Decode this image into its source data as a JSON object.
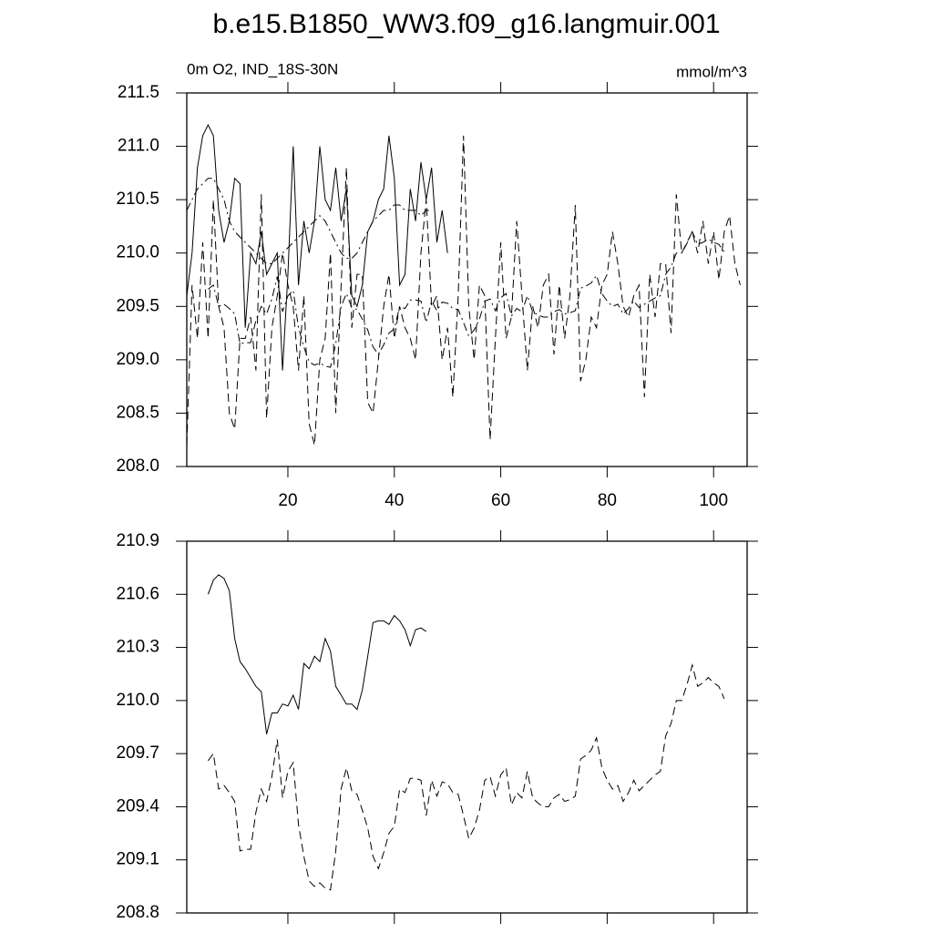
{
  "chart_data": [
    {
      "type": "line",
      "title": "b.e15.B1850_WW3.f09_g16.langmuir.001",
      "subtitle": "0m O2, IND_18S-30N",
      "units": "mmol/m^3",
      "x": [
        1,
        2,
        3,
        4,
        5,
        6,
        7,
        8,
        9,
        10,
        11,
        12,
        13,
        14,
        15,
        16,
        17,
        18,
        19,
        20,
        21,
        22,
        23,
        24,
        25,
        26,
        27,
        28,
        29,
        30,
        31,
        32,
        33,
        34,
        35,
        36,
        37,
        38,
        39,
        40,
        41,
        42,
        43,
        44,
        45,
        46,
        47,
        48,
        49,
        50,
        51,
        52,
        53,
        54,
        55,
        56,
        57,
        58,
        59,
        60,
        61,
        62,
        63,
        64,
        65,
        66,
        67,
        68,
        69,
        70,
        71,
        72,
        73,
        74,
        75,
        76,
        77,
        78,
        79,
        80,
        81,
        82,
        83,
        84,
        85,
        86,
        87,
        88,
        89,
        90,
        91,
        92,
        93,
        94,
        95,
        96,
        97,
        98,
        99,
        100,
        101,
        102,
        103,
        104,
        105
      ],
      "xlim": [
        1,
        106.3
      ],
      "xticks": [
        20,
        40,
        60,
        80,
        100
      ],
      "ylim": [
        208,
        211.5
      ],
      "yticks": [
        {
          "value": 208,
          "label": "208.0"
        },
        208.5,
        {
          "value": 209,
          "label": "209.0"
        },
        209.5,
        {
          "value": 210,
          "label": "210.0"
        },
        210.5,
        {
          "value": 211,
          "label": "211.0"
        },
        211.5
      ],
      "series": [
        {
          "color": "#000000",
          "dash": "solid",
          "values": [
            209.6,
            210.0,
            210.8,
            211.1,
            211.2,
            211.1,
            210.4,
            210.1,
            210.3,
            210.7,
            210.65,
            209.3,
            210.0,
            209.9,
            210.2,
            209.8,
            209.9,
            210.0,
            208.9,
            209.8,
            211.0,
            209.7,
            210.3,
            210.0,
            210.3,
            211.0,
            210.5,
            210.4,
            210.8,
            210.3,
            210.6,
            209.6,
            209.5,
            209.7,
            210.2,
            210.3,
            210.5,
            210.6,
            211.1,
            210.7,
            209.7,
            209.8,
            210.6,
            210.3,
            210.85,
            210.5,
            210.8,
            210.1,
            210.4,
            210.0,
            null,
            null,
            null,
            null,
            null,
            null,
            null,
            null,
            null,
            null,
            null,
            null,
            null,
            null,
            null,
            null,
            null,
            null,
            null,
            null,
            null,
            null,
            null,
            null,
            null,
            null,
            null,
            null,
            null,
            null,
            null,
            null,
            null,
            null,
            null,
            null,
            null,
            null,
            null,
            null,
            null,
            null,
            null,
            null,
            null,
            null,
            null,
            null,
            null,
            null,
            null,
            null,
            null,
            null,
            null
          ]
        },
        {
          "color": "#000000",
          "dash": "dashed",
          "values": [
            208.2,
            209.7,
            209.2,
            210.1,
            209.2,
            210.5,
            209.5,
            209.3,
            208.5,
            208.35,
            209.2,
            209.2,
            209.4,
            208.9,
            210.55,
            208.45,
            209.3,
            209.6,
            210.0,
            209.7,
            209.5,
            208.9,
            209.6,
            208.4,
            208.2,
            209.0,
            209.2,
            210.0,
            208.5,
            209.7,
            210.8,
            209.3,
            209.8,
            209.8,
            208.6,
            208.5,
            209.0,
            209.5,
            209.8,
            209.2,
            209.5,
            209.3,
            209.2,
            209.0,
            210.0,
            210.5,
            209.5,
            209.6,
            209.0,
            209.3,
            208.65,
            209.6,
            211.1,
            209.5,
            209.0,
            209.7,
            209.6,
            208.25,
            209.2,
            210.1,
            209.2,
            209.4,
            210.3,
            209.6,
            208.9,
            209.5,
            209.3,
            209.7,
            209.8,
            209.05,
            209.7,
            209.2,
            209.6,
            210.45,
            208.8,
            209.0,
            209.4,
            209.3,
            209.7,
            209.8,
            210.2,
            209.9,
            209.5,
            209.4,
            209.6,
            209.7,
            208.65,
            209.8,
            209.4,
            209.9,
            209.9,
            209.25,
            210.55,
            210.0,
            210.1,
            210.2,
            210.0,
            210.3,
            209.9,
            210.2,
            209.75,
            210.2,
            210.35,
            209.9,
            209.7
          ]
        },
        {
          "color": "#000000",
          "dash": "dashdot",
          "values": [
            210.4,
            210.5,
            210.6,
            210.65,
            210.7,
            210.7,
            210.6,
            210.5,
            210.3,
            210.2,
            210.15,
            210.1,
            210.05,
            210.0,
            209.95,
            209.9,
            209.9,
            209.95,
            210.0,
            210.05,
            210.1,
            210.15,
            210.2,
            210.25,
            210.3,
            210.35,
            210.3,
            210.2,
            210.1,
            210.0,
            209.95,
            209.95,
            210.0,
            210.1,
            210.2,
            210.3,
            210.35,
            210.4,
            210.4,
            210.45,
            210.45,
            210.4,
            210.4,
            210.4,
            210.35,
            210.4,
            210.4,
            null,
            null,
            null,
            null,
            null,
            null,
            null,
            null,
            null,
            null,
            null,
            null,
            null,
            null,
            null,
            null,
            null,
            null,
            null,
            null,
            null,
            null,
            null,
            null,
            null,
            null,
            null,
            null,
            null,
            null,
            null,
            null,
            null,
            null,
            null,
            null,
            null,
            null,
            null,
            null,
            null,
            null,
            null,
            null,
            null,
            null,
            null,
            null,
            null,
            null,
            null,
            null,
            null,
            null,
            null,
            null,
            null,
            null
          ]
        },
        {
          "color": "#000000",
          "dash": "dashdot",
          "values": [
            null,
            null,
            null,
            null,
            209.66,
            209.7,
            209.5,
            209.52,
            209.48,
            209.43,
            209.15,
            209.16,
            209.16,
            209.37,
            209.5,
            209.43,
            209.57,
            209.78,
            209.45,
            209.6,
            209.65,
            209.3,
            209.12,
            208.98,
            208.95,
            208.97,
            208.94,
            208.93,
            209.15,
            209.5,
            209.62,
            209.49,
            209.47,
            209.38,
            209.28,
            209.12,
            209.05,
            209.14,
            209.25,
            209.29,
            209.5,
            209.48,
            209.56,
            209.56,
            209.55,
            209.35,
            209.55,
            209.46,
            209.54,
            209.53,
            209.48,
            209.47,
            209.35,
            209.22,
            209.28,
            209.38,
            209.55,
            209.57,
            209.46,
            209.58,
            209.62,
            209.41,
            209.48,
            209.45,
            209.6,
            209.45,
            209.42,
            209.4,
            209.4,
            209.45,
            209.47,
            209.43,
            209.44,
            209.46,
            209.67,
            209.69,
            209.72,
            209.79,
            209.62,
            209.55,
            209.5,
            209.52,
            209.43,
            209.48,
            209.55,
            209.49,
            209.52,
            209.55,
            209.58,
            209.6,
            209.8,
            209.87,
            210.0,
            210.0,
            210.09,
            210.2,
            210.08,
            210.1,
            210.13,
            210.1,
            210.08,
            210.01,
            null,
            null,
            null
          ]
        }
      ]
    },
    {
      "type": "line",
      "x": [
        1,
        2,
        3,
        4,
        5,
        6,
        7,
        8,
        9,
        10,
        11,
        12,
        13,
        14,
        15,
        16,
        17,
        18,
        19,
        20,
        21,
        22,
        23,
        24,
        25,
        26,
        27,
        28,
        29,
        30,
        31,
        32,
        33,
        34,
        35,
        36,
        37,
        38,
        39,
        40,
        41,
        42,
        43,
        44,
        45,
        46,
        47,
        48,
        49,
        50,
        51,
        52,
        53,
        54,
        55,
        56,
        57,
        58,
        59,
        60,
        61,
        62,
        63,
        64,
        65,
        66,
        67,
        68,
        69,
        70,
        71,
        72,
        73,
        74,
        75,
        76,
        77,
        78,
        79,
        80,
        81,
        82,
        83,
        84,
        85,
        86,
        87,
        88,
        89,
        90,
        91,
        92,
        93,
        94,
        95,
        96,
        97,
        98,
        99,
        100,
        101,
        102,
        103,
        104,
        105
      ],
      "xlim": [
        1,
        106.3
      ],
      "xticks": [
        20,
        40,
        60,
        80,
        100
      ],
      "xtick_labels": false,
      "ylim": [
        208.8,
        210.9
      ],
      "yticks": [
        208.8,
        209.1,
        209.4,
        209.7,
        {
          "value": 210,
          "label": "210.0"
        },
        210.3,
        210.6,
        210.9
      ],
      "series": [
        {
          "color": "#000000",
          "dash": "solid",
          "values": [
            null,
            null,
            null,
            null,
            210.6,
            210.68,
            210.71,
            210.69,
            210.62,
            210.35,
            210.22,
            210.18,
            210.13,
            210.08,
            210.05,
            209.81,
            209.93,
            209.93,
            209.98,
            209.97,
            210.03,
            209.95,
            210.21,
            210.18,
            210.25,
            210.22,
            210.35,
            210.28,
            210.08,
            210.03,
            209.98,
            209.98,
            209.95,
            210.06,
            210.25,
            210.44,
            210.45,
            210.45,
            210.43,
            210.48,
            210.45,
            210.4,
            210.31,
            210.4,
            210.41,
            210.39,
            null,
            null,
            null,
            null,
            null,
            null,
            null,
            null,
            null,
            null,
            null,
            null,
            null,
            null,
            null,
            null,
            null,
            null,
            null,
            null,
            null,
            null,
            null,
            null,
            null,
            null,
            null,
            null,
            null,
            null,
            null,
            null,
            null,
            null,
            null,
            null,
            null,
            null,
            null,
            null,
            null,
            null,
            null,
            null,
            null,
            null,
            null,
            null,
            null,
            null,
            null,
            null,
            null,
            null,
            null,
            null,
            null,
            null,
            null
          ]
        },
        {
          "color": "#000000",
          "dash": "dashed",
          "values": [
            null,
            null,
            null,
            null,
            209.66,
            209.7,
            209.5,
            209.52,
            209.48,
            209.43,
            209.15,
            209.16,
            209.16,
            209.37,
            209.5,
            209.43,
            209.57,
            209.78,
            209.45,
            209.6,
            209.65,
            209.3,
            209.12,
            208.98,
            208.95,
            208.97,
            208.94,
            208.93,
            209.15,
            209.5,
            209.62,
            209.49,
            209.47,
            209.38,
            209.28,
            209.12,
            209.05,
            209.14,
            209.25,
            209.29,
            209.5,
            209.48,
            209.56,
            209.56,
            209.55,
            209.35,
            209.55,
            209.46,
            209.54,
            209.53,
            209.48,
            209.47,
            209.35,
            209.22,
            209.28,
            209.38,
            209.55,
            209.57,
            209.46,
            209.58,
            209.62,
            209.41,
            209.48,
            209.45,
            209.6,
            209.45,
            209.42,
            209.4,
            209.4,
            209.45,
            209.47,
            209.43,
            209.44,
            209.46,
            209.67,
            209.69,
            209.72,
            209.79,
            209.62,
            209.55,
            209.5,
            209.52,
            209.43,
            209.48,
            209.55,
            209.49,
            209.52,
            209.55,
            209.58,
            209.6,
            209.8,
            209.87,
            210.0,
            210.0,
            210.09,
            210.2,
            210.08,
            210.1,
            210.13,
            210.1,
            210.08,
            210.01,
            null,
            null,
            null
          ]
        }
      ]
    }
  ]
}
